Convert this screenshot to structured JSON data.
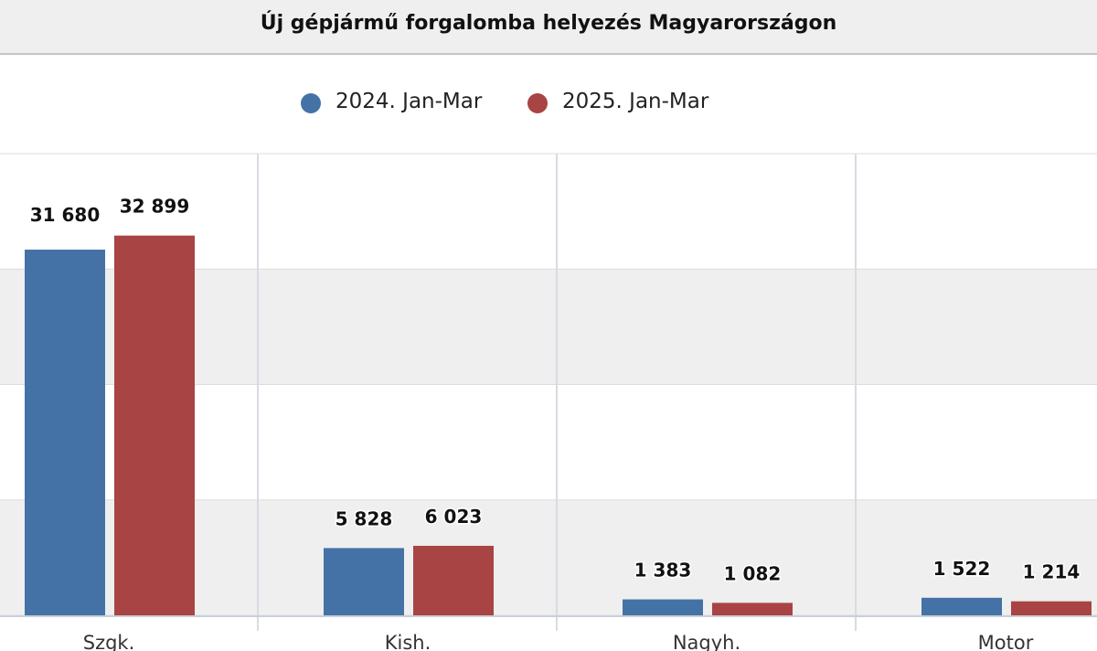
{
  "title": "Új gépjármű forgalomba helyezés Magyarországon",
  "legend": [
    {
      "name": "2024. Jan-Mar",
      "color": "#4472a6"
    },
    {
      "name": "2025. Jan-Mar",
      "color": "#a84444"
    }
  ],
  "chart_data": {
    "type": "bar",
    "title": "Új gépjármű forgalomba helyezés Magyarországon",
    "categories": [
      "Szgk.",
      "Kish.",
      "Nagyh.",
      "Motor"
    ],
    "series": [
      {
        "name": "2024. Jan-Mar",
        "values": [
          31680,
          5828,
          1383,
          1522
        ],
        "labels": [
          "31 680",
          "5 828",
          "1 383",
          "1 522"
        ],
        "color": "#4472a6"
      },
      {
        "name": "2025. Jan-Mar",
        "values": [
          32899,
          6023,
          1082,
          1214
        ],
        "labels": [
          "32 899",
          "6 023",
          "1 082",
          "1 214"
        ],
        "color": "#a84444"
      }
    ],
    "ylim": [
      0,
      40000
    ],
    "grid": true,
    "legend_position": "top",
    "xlabel": "",
    "ylabel": ""
  }
}
